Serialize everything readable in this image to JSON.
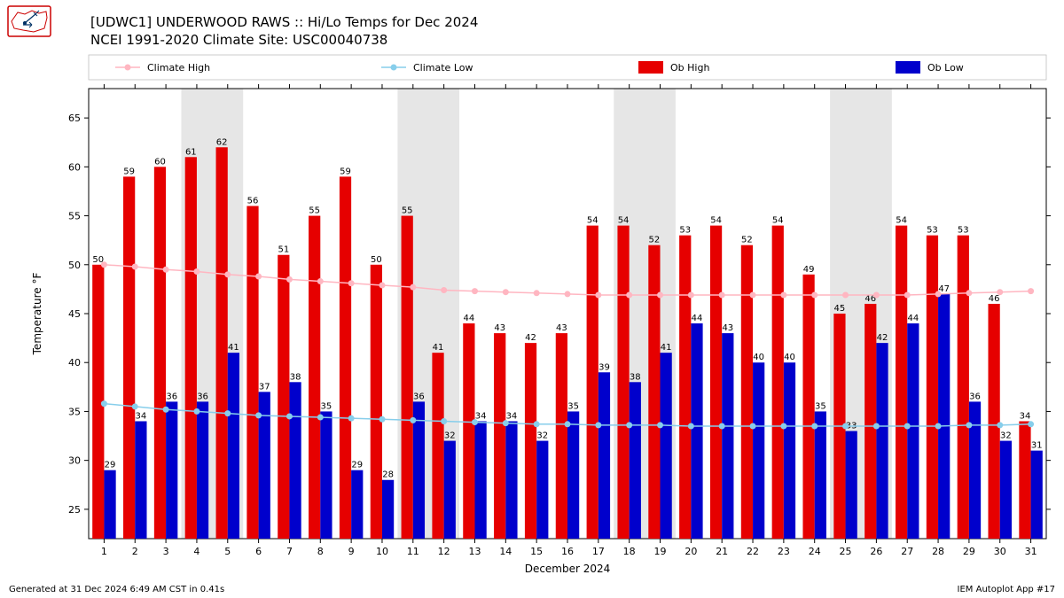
{
  "title_line1": "[UDWC1] UNDERWOOD RAWS :: Hi/Lo Temps for Dec 2024",
  "title_line2": "NCEI 1991-2020 Climate Site: USC00040738",
  "xaxis_label": "December 2024",
  "yaxis_label": "Temperature °F",
  "footer_left": "Generated at 31 Dec 2024 6:49 AM CST in 0.41s",
  "footer_right": "IEM Autoplot App #17",
  "legend": {
    "climate_high": "Climate High",
    "climate_low": "Climate Low",
    "ob_high": "Ob High",
    "ob_low": "Ob Low"
  },
  "chart": {
    "days": [
      1,
      2,
      3,
      4,
      5,
      6,
      7,
      8,
      9,
      10,
      11,
      12,
      13,
      14,
      15,
      16,
      17,
      18,
      19,
      20,
      21,
      22,
      23,
      24,
      25,
      26,
      27,
      28,
      29,
      30,
      31
    ],
    "ob_high": [
      50,
      59,
      60,
      61,
      62,
      56,
      51,
      55,
      59,
      50,
      55,
      41,
      44,
      43,
      42,
      43,
      54,
      54,
      52,
      53,
      54,
      52,
      54,
      49,
      45,
      46,
      54,
      53,
      53,
      46,
      34
    ],
    "ob_low": [
      29,
      34,
      36,
      36,
      41,
      37,
      38,
      35,
      29,
      28,
      36,
      32,
      34,
      34,
      32,
      35,
      39,
      38,
      41,
      44,
      43,
      40,
      40,
      35,
      33,
      42,
      44,
      47,
      36,
      32,
      31
    ],
    "climate_high": [
      50,
      49.8,
      49.5,
      49.3,
      49,
      48.8,
      48.5,
      48.3,
      48.1,
      47.9,
      47.7,
      47.4,
      47.3,
      47.2,
      47.1,
      47,
      46.9,
      46.9,
      46.9,
      46.9,
      46.9,
      46.9,
      46.9,
      46.9,
      46.9,
      46.9,
      46.9,
      47,
      47.1,
      47.2,
      47.3
    ],
    "climate_low": [
      35.8,
      35.5,
      35.2,
      35,
      34.8,
      34.6,
      34.5,
      34.4,
      34.3,
      34.2,
      34.1,
      34,
      33.9,
      33.8,
      33.7,
      33.7,
      33.6,
      33.6,
      33.6,
      33.5,
      33.5,
      33.5,
      33.5,
      33.5,
      33.5,
      33.5,
      33.5,
      33.5,
      33.6,
      33.6,
      33.7
    ],
    "weekend_bands": [
      [
        4,
        5
      ],
      [
        11,
        12
      ],
      [
        18,
        19
      ],
      [
        25,
        26
      ]
    ],
    "xlim": [
      0.5,
      31.5
    ],
    "ylim": [
      22,
      68
    ],
    "yticks": [
      25,
      30,
      35,
      40,
      45,
      50,
      55,
      60,
      65
    ],
    "colors": {
      "ob_high": "#e60000",
      "ob_low": "#0000cc",
      "climate_high": "#ffb6c1",
      "climate_low": "#87ceeb",
      "weekend_band": "#e6e6e6",
      "axis": "#000000",
      "grid": "#ffffff",
      "background": "#ffffff",
      "text": "#000000"
    },
    "bar_width": 0.38,
    "marker_radius": 3.5,
    "line_width": 1.5,
    "title_fontsize": 15,
    "axis_label_fontsize": 12,
    "tick_fontsize": 11,
    "value_label_fontsize": 10,
    "legend_fontsize": 11
  }
}
